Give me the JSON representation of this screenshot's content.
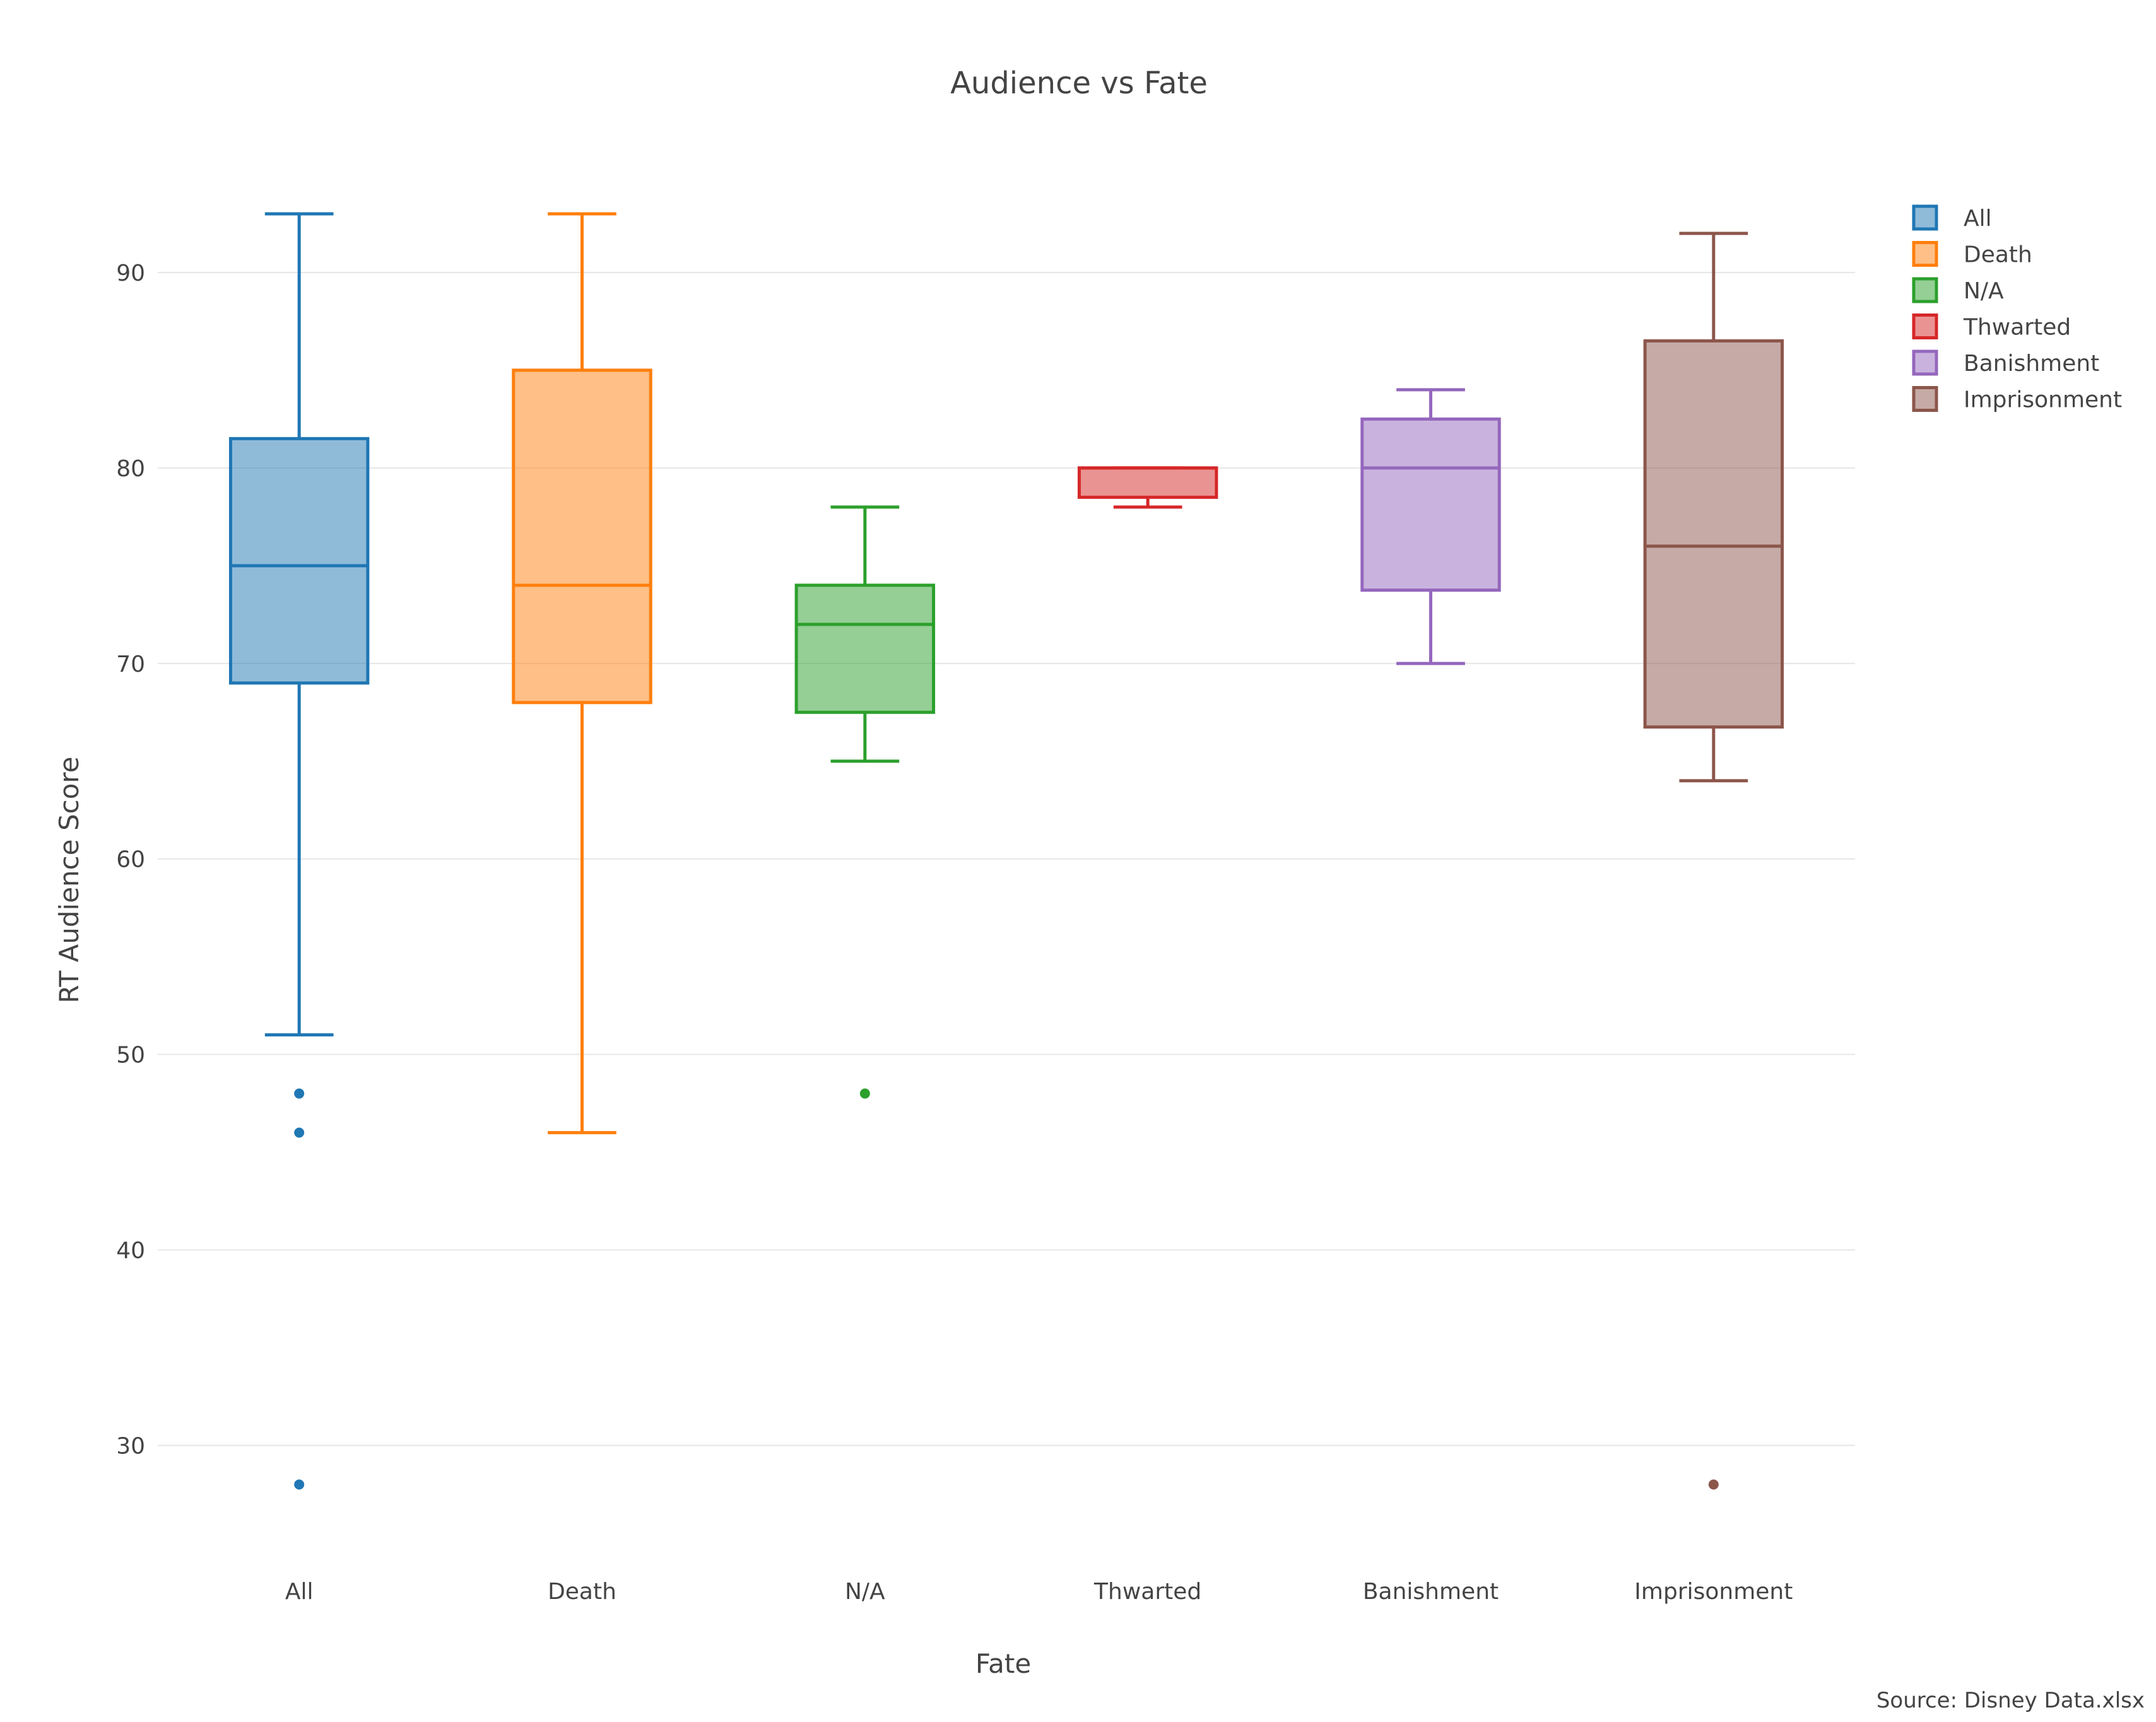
{
  "chart_data": {
    "type": "box",
    "title": "Audience vs Fate",
    "xlabel": "Fate",
    "ylabel": "RT Audience Score",
    "ylim": [
      24.5,
      97
    ],
    "yticks": [
      30,
      40,
      50,
      60,
      70,
      80,
      90
    ],
    "grid": true,
    "legend_position": "top-right",
    "source": "Source: Disney Data.xlsx",
    "series": [
      {
        "name": "All",
        "color": "#1f77b4",
        "fill": "rgba(31,119,180,0.5)",
        "lowerfence": 51,
        "q1": 69,
        "median": 75,
        "q3": 81.5,
        "upperfence": 93,
        "outliers": [
          48,
          46,
          28
        ]
      },
      {
        "name": "Death",
        "color": "#ff7f0e",
        "fill": "rgba(255,127,14,0.5)",
        "lowerfence": 46,
        "q1": 68,
        "median": 74,
        "q3": 85,
        "upperfence": 93,
        "outliers": []
      },
      {
        "name": "N/A",
        "color": "#2ca02c",
        "fill": "rgba(44,160,44,0.5)",
        "lowerfence": 65,
        "q1": 67.5,
        "median": 72,
        "q3": 74,
        "upperfence": 78,
        "outliers": [
          48
        ]
      },
      {
        "name": "Thwarted",
        "color": "#d62728",
        "fill": "rgba(214,39,40,0.5)",
        "lowerfence": 78,
        "q1": 78.5,
        "median": 80,
        "q3": 80,
        "upperfence": 80,
        "outliers": []
      },
      {
        "name": "Banishment",
        "color": "#9467bd",
        "fill": "rgba(148,103,189,0.5)",
        "lowerfence": 70,
        "q1": 73.75,
        "median": 80,
        "q3": 82.5,
        "upperfence": 84,
        "outliers": []
      },
      {
        "name": "Imprisonment",
        "color": "#8c564b",
        "fill": "rgba(140,86,75,0.5)",
        "lowerfence": 64,
        "q1": 66.75,
        "median": 76,
        "q3": 86.5,
        "upperfence": 92,
        "outliers": [
          28
        ]
      }
    ]
  }
}
